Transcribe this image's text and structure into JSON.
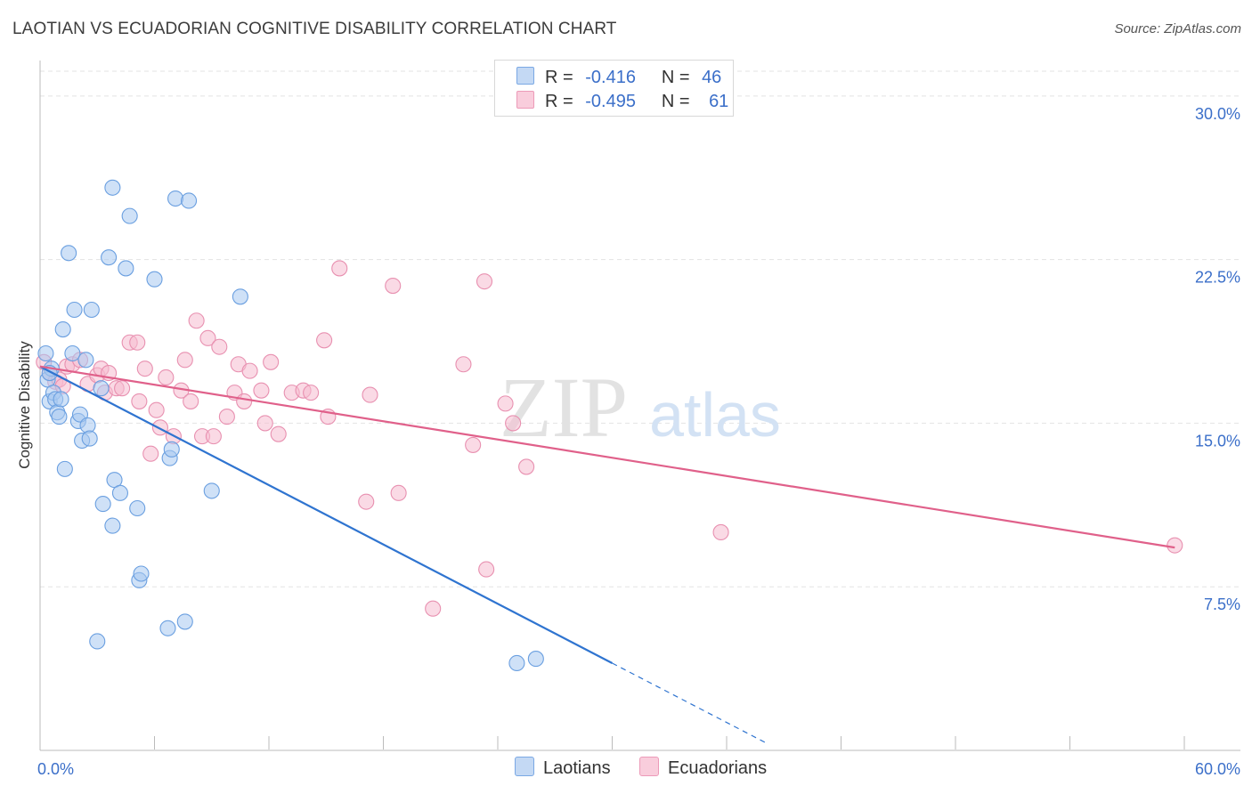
{
  "title": "LAOTIAN VS ECUADORIAN COGNITIVE DISABILITY CORRELATION CHART",
  "source": "Source: ZipAtlas.com",
  "watermark": {
    "zip": "ZIP",
    "atlas": "atlas"
  },
  "colors": {
    "laotian_fill": "#a8c8f0",
    "laotian_stroke": "#6a9fe0",
    "laotian_line": "#2f74d0",
    "ecuadorian_fill": "#f6bcd0",
    "ecuadorian_stroke": "#e890b0",
    "ecuadorian_line": "#e0608a",
    "tick_label": "#3b6fc9",
    "grid": "#e3e3e3"
  },
  "legend": {
    "rows": [
      {
        "r_label": "R =",
        "r_value": "-0.416",
        "n_label": "N =",
        "n_value": "46"
      },
      {
        "r_label": "R =",
        "r_value": "-0.495",
        "n_label": "N =",
        "n_value": "61"
      }
    ]
  },
  "chart_data": {
    "type": "scatter",
    "title": "LAOTIAN VS ECUADORIAN COGNITIVE DISABILITY CORRELATION CHART",
    "xlabel": "",
    "ylabel": "Cognitive Disability",
    "xlim": [
      0,
      60
    ],
    "ylim": [
      0,
      30
    ],
    "x_tick_labels": [
      "0.0%",
      "60.0%"
    ],
    "y_ticks": [
      7.5,
      15.0,
      22.5,
      30.0
    ],
    "y_tick_labels": [
      "7.5%",
      "15.0%",
      "22.5%",
      "30.0%"
    ],
    "grid": true,
    "legend_position": "bottom",
    "series": [
      {
        "name": "Laotians",
        "r": -0.416,
        "n": 46,
        "trend": {
          "x0": 0,
          "y0": 17.6,
          "x1": 30,
          "y1": 4.0,
          "dashed_to_x": 38.2
        },
        "points": [
          [
            0.4,
            17.0
          ],
          [
            0.5,
            16.0
          ],
          [
            0.6,
            17.5
          ],
          [
            0.7,
            16.4
          ],
          [
            0.8,
            16.1
          ],
          [
            0.9,
            15.5
          ],
          [
            1.0,
            15.3
          ],
          [
            1.1,
            16.1
          ],
          [
            1.2,
            19.3
          ],
          [
            1.3,
            12.9
          ],
          [
            1.5,
            22.8
          ],
          [
            1.7,
            18.2
          ],
          [
            1.8,
            20.2
          ],
          [
            2.0,
            15.1
          ],
          [
            2.1,
            15.4
          ],
          [
            2.2,
            14.2
          ],
          [
            2.4,
            17.9
          ],
          [
            2.5,
            14.9
          ],
          [
            2.6,
            14.3
          ],
          [
            2.7,
            20.2
          ],
          [
            3.0,
            5.0
          ],
          [
            3.2,
            16.6
          ],
          [
            3.3,
            11.3
          ],
          [
            3.6,
            22.6
          ],
          [
            3.8,
            10.3
          ],
          [
            3.8,
            25.8
          ],
          [
            3.9,
            12.4
          ],
          [
            4.2,
            11.8
          ],
          [
            4.5,
            22.1
          ],
          [
            4.7,
            24.5
          ],
          [
            5.1,
            11.1
          ],
          [
            5.2,
            7.8
          ],
          [
            5.3,
            8.1
          ],
          [
            6.0,
            21.6
          ],
          [
            6.7,
            5.6
          ],
          [
            6.8,
            13.4
          ],
          [
            6.9,
            13.8
          ],
          [
            7.1,
            25.3
          ],
          [
            7.6,
            5.9
          ],
          [
            7.8,
            25.2
          ],
          [
            9.0,
            11.9
          ],
          [
            10.5,
            20.8
          ],
          [
            25.0,
            4.0
          ],
          [
            26.0,
            4.2
          ],
          [
            0.3,
            18.2
          ],
          [
            0.5,
            17.3
          ]
        ]
      },
      {
        "name": "Ecuadorians",
        "r": -0.495,
        "n": 61,
        "trend": {
          "x0": 0,
          "y0": 17.6,
          "x1": 59.5,
          "y1": 9.3
        },
        "points": [
          [
            0.2,
            17.8
          ],
          [
            0.5,
            17.3
          ],
          [
            0.8,
            16.9
          ],
          [
            1.0,
            17.0
          ],
          [
            1.2,
            16.7
          ],
          [
            1.4,
            17.6
          ],
          [
            1.7,
            17.7
          ],
          [
            2.1,
            17.9
          ],
          [
            2.5,
            16.8
          ],
          [
            3.0,
            17.2
          ],
          [
            3.2,
            17.5
          ],
          [
            3.4,
            16.4
          ],
          [
            3.6,
            17.3
          ],
          [
            4.0,
            16.6
          ],
          [
            4.3,
            16.6
          ],
          [
            4.7,
            18.7
          ],
          [
            5.1,
            18.7
          ],
          [
            5.2,
            16.0
          ],
          [
            5.5,
            17.5
          ],
          [
            5.8,
            13.6
          ],
          [
            6.1,
            15.6
          ],
          [
            6.3,
            14.8
          ],
          [
            6.6,
            17.1
          ],
          [
            7.0,
            14.4
          ],
          [
            7.4,
            16.5
          ],
          [
            7.6,
            17.9
          ],
          [
            7.9,
            16.0
          ],
          [
            8.2,
            19.7
          ],
          [
            8.5,
            14.4
          ],
          [
            8.8,
            18.9
          ],
          [
            9.1,
            14.4
          ],
          [
            9.4,
            18.5
          ],
          [
            9.8,
            15.3
          ],
          [
            10.2,
            16.4
          ],
          [
            10.4,
            17.7
          ],
          [
            10.7,
            16.0
          ],
          [
            11.0,
            17.4
          ],
          [
            11.6,
            16.5
          ],
          [
            11.8,
            15.0
          ],
          [
            12.1,
            17.8
          ],
          [
            12.5,
            14.5
          ],
          [
            13.2,
            16.4
          ],
          [
            13.8,
            16.5
          ],
          [
            14.2,
            16.4
          ],
          [
            14.9,
            18.8
          ],
          [
            15.1,
            15.3
          ],
          [
            15.7,
            22.1
          ],
          [
            17.1,
            11.4
          ],
          [
            17.3,
            16.3
          ],
          [
            18.5,
            21.3
          ],
          [
            18.8,
            11.8
          ],
          [
            20.6,
            6.5
          ],
          [
            22.2,
            17.7
          ],
          [
            22.7,
            14.0
          ],
          [
            23.3,
            21.5
          ],
          [
            23.4,
            8.3
          ],
          [
            24.4,
            15.9
          ],
          [
            24.8,
            15.0
          ],
          [
            25.5,
            13.0
          ],
          [
            35.7,
            10.0
          ],
          [
            59.5,
            9.4
          ]
        ]
      }
    ]
  }
}
